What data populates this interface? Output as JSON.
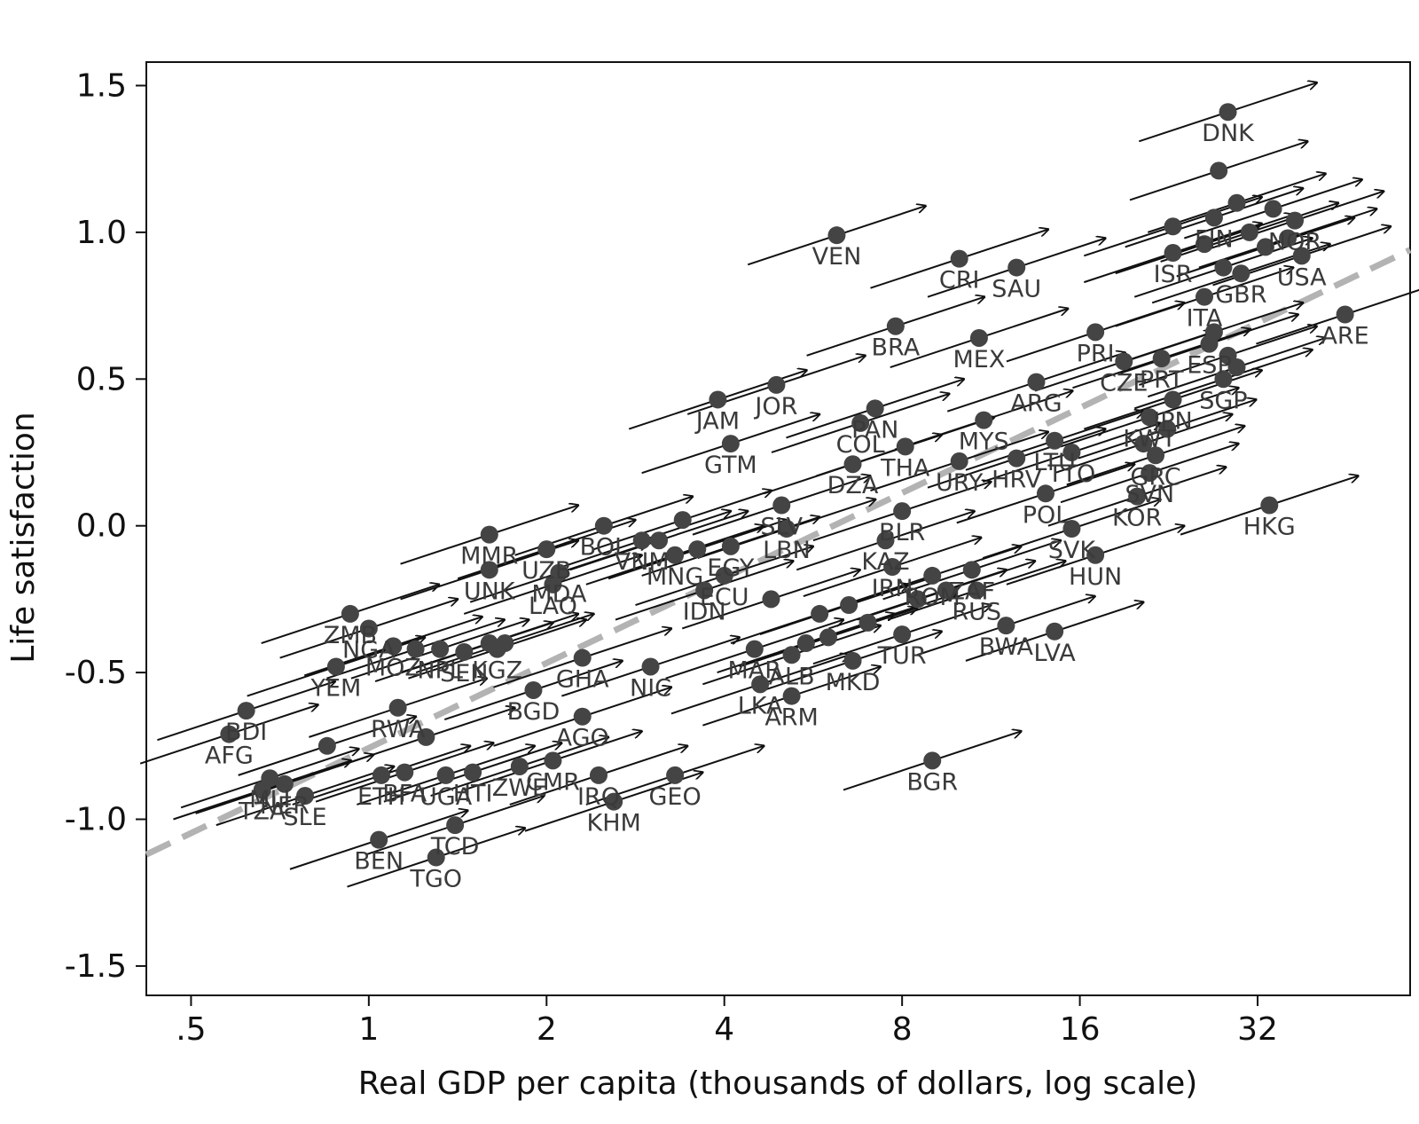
{
  "chart_data": {
    "type": "scatter",
    "title": "",
    "xlabel": "Real GDP per capita (thousands of dollars, log scale)",
    "ylabel": "Life satisfaction",
    "x_scale": "log2",
    "xlim": [
      0.42,
      58
    ],
    "ylim": [
      -1.6,
      1.58
    ],
    "x_ticks": [
      0.5,
      1,
      2,
      4,
      8,
      16,
      32
    ],
    "x_tick_labels": [
      ".5",
      "1",
      "2",
      "4",
      "8",
      "16",
      "32"
    ],
    "y_ticks": [
      1.5,
      1.0,
      0.5,
      0.0,
      -0.5,
      -1.0,
      -1.5
    ],
    "y_tick_labels": [
      "1.5",
      "1.0",
      "0.5",
      "0.0",
      "-0.5",
      "-1.0",
      "-1.5"
    ],
    "grid": false,
    "legend": "none",
    "colors": {
      "points": "#444444",
      "arrows": "#111111",
      "trend": "#b3b3b3",
      "labels": "#3a3a3a"
    },
    "trend_line": {
      "style": "dashed",
      "points": [
        [
          0.42,
          -1.12
        ],
        [
          58,
          0.94
        ]
      ]
    },
    "arrow_length": {
      "dlog2x": 1.0,
      "dy": 0.2
    },
    "countries": [
      {
        "code": "DNK",
        "gdp": 28.5,
        "ls": 1.41
      },
      {
        "code": "VEN",
        "gdp": 6.2,
        "ls": 0.99
      },
      {
        "code": "CRI",
        "gdp": 10.0,
        "ls": 0.91
      },
      {
        "code": "SAU",
        "gdp": 12.5,
        "ls": 0.88
      },
      {
        "code": "ARE",
        "gdp": 45.0,
        "ls": 0.72
      },
      {
        "code": "BRA",
        "gdp": 7.8,
        "ls": 0.68
      },
      {
        "code": "MEX",
        "gdp": 10.8,
        "ls": 0.64
      },
      {
        "code": "PRI",
        "gdp": 17.0,
        "ls": 0.66
      },
      {
        "code": "ITA",
        "gdp": 26.0,
        "ls": 0.78
      },
      {
        "code": "GBR",
        "gdp": 30.0,
        "ls": 0.86
      },
      {
        "code": "USA",
        "gdp": 38.0,
        "ls": 0.92
      },
      {
        "code": "ISR",
        "gdp": 23.0,
        "ls": 0.93
      },
      {
        "code": "FIN",
        "gdp": 27.0,
        "ls": 1.05
      },
      {
        "code": "NOR",
        "gdp": 37.0,
        "ls": 1.04
      },
      {
        "code": "JOR",
        "gdp": 4.9,
        "ls": 0.48
      },
      {
        "code": "JAM",
        "gdp": 3.9,
        "ls": 0.43
      },
      {
        "code": "CZE",
        "gdp": 19.0,
        "ls": 0.56
      },
      {
        "code": "ARG",
        "gdp": 13.5,
        "ls": 0.49
      },
      {
        "code": "PAN",
        "gdp": 7.2,
        "ls": 0.4
      },
      {
        "code": "GTM",
        "gdp": 4.1,
        "ls": 0.28
      },
      {
        "code": "COL",
        "gdp": 6.8,
        "ls": 0.35
      },
      {
        "code": "SLV",
        "gdp": 5.0,
        "ls": 0.07
      },
      {
        "code": "DZA",
        "gdp": 6.6,
        "ls": 0.21
      },
      {
        "code": "THA",
        "gdp": 8.1,
        "ls": 0.27
      },
      {
        "code": "MYS",
        "gdp": 11.0,
        "ls": 0.36
      },
      {
        "code": "URY",
        "gdp": 10.0,
        "ls": 0.22
      },
      {
        "code": "HRV",
        "gdp": 12.5,
        "ls": 0.23
      },
      {
        "code": "LTU",
        "gdp": 14.5,
        "ls": 0.29
      },
      {
        "code": "TTO",
        "gdp": 15.5,
        "ls": 0.25
      },
      {
        "code": "KWT",
        "gdp": 21.0,
        "ls": 0.37
      },
      {
        "code": "JPN",
        "gdp": 23.0,
        "ls": 0.43
      },
      {
        "code": "SGP",
        "gdp": 28.0,
        "ls": 0.5
      },
      {
        "code": "GRC",
        "gdp": 21.5,
        "ls": 0.24
      },
      {
        "code": "SVN",
        "gdp": 21.0,
        "ls": 0.18
      },
      {
        "code": "KOR",
        "gdp": 20.0,
        "ls": 0.1
      },
      {
        "code": "POL",
        "gdp": 14.0,
        "ls": 0.11
      },
      {
        "code": "HKG",
        "gdp": 33.5,
        "ls": 0.07
      },
      {
        "code": "LBN",
        "gdp": 5.1,
        "ls": -0.01
      },
      {
        "code": "BLR",
        "gdp": 8.0,
        "ls": 0.05
      },
      {
        "code": "KAZ",
        "gdp": 7.5,
        "ls": -0.05
      },
      {
        "code": "IRN",
        "gdp": 7.7,
        "ls": -0.14
      },
      {
        "code": "SVK",
        "gdp": 15.5,
        "ls": -0.01
      },
      {
        "code": "HUN",
        "gdp": 17.0,
        "ls": -0.1
      },
      {
        "code": "MMR",
        "gdp": 1.6,
        "ls": -0.03
      },
      {
        "code": "UNK",
        "gdp": 1.6,
        "ls": -0.15
      },
      {
        "code": "UZB",
        "gdp": 2.0,
        "ls": -0.08
      },
      {
        "code": "MDA",
        "gdp": 2.1,
        "ls": -0.16
      },
      {
        "code": "LAO",
        "gdp": 2.05,
        "ls": -0.2
      },
      {
        "code": "BOL",
        "gdp": 2.5,
        "ls": 0.0
      },
      {
        "code": "VNM",
        "gdp": 2.9,
        "ls": -0.05
      },
      {
        "code": "MNG",
        "gdp": 3.3,
        "ls": -0.1
      },
      {
        "code": "EGY",
        "gdp": 4.1,
        "ls": -0.07
      },
      {
        "code": "ECU",
        "gdp": 4.0,
        "ls": -0.17
      },
      {
        "code": "IDN",
        "gdp": 3.7,
        "ls": -0.22
      },
      {
        "code": "ROM",
        "gdp": 9.0,
        "ls": -0.17
      },
      {
        "code": "ZAF",
        "gdp": 10.5,
        "ls": -0.15
      },
      {
        "code": "RUS",
        "gdp": 10.7,
        "ls": -0.22
      },
      {
        "code": "BWA",
        "gdp": 12.0,
        "ls": -0.34
      },
      {
        "code": "LVA",
        "gdp": 14.5,
        "ls": -0.36
      },
      {
        "code": "TUR",
        "gdp": 8.0,
        "ls": -0.37
      },
      {
        "code": "MKD",
        "gdp": 6.6,
        "ls": -0.46
      },
      {
        "code": "ALB",
        "gdp": 5.2,
        "ls": -0.44
      },
      {
        "code": "MAR",
        "gdp": 4.5,
        "ls": -0.42
      },
      {
        "code": "LKA",
        "gdp": 4.6,
        "ls": -0.54
      },
      {
        "code": "ARM",
        "gdp": 5.2,
        "ls": -0.58
      },
      {
        "code": "NIC",
        "gdp": 3.0,
        "ls": -0.48
      },
      {
        "code": "GEO",
        "gdp": 3.3,
        "ls": -0.85
      },
      {
        "code": "IRQ",
        "gdp": 2.45,
        "ls": -0.85
      },
      {
        "code": "KHM",
        "gdp": 2.6,
        "ls": -0.94
      },
      {
        "code": "GHA",
        "gdp": 2.3,
        "ls": -0.45
      },
      {
        "code": "BGD",
        "gdp": 1.9,
        "ls": -0.56
      },
      {
        "code": "AGO",
        "gdp": 2.3,
        "ls": -0.65
      },
      {
        "code": "CMR",
        "gdp": 2.05,
        "ls": -0.8
      },
      {
        "code": "ZWE",
        "gdp": 1.8,
        "ls": -0.82
      },
      {
        "code": "KGZ",
        "gdp": 1.65,
        "ls": -0.42
      },
      {
        "code": "SEN",
        "gdp": 1.45,
        "ls": -0.43
      },
      {
        "code": "NPL",
        "gdp": 1.32,
        "ls": -0.42
      },
      {
        "code": "MOZ",
        "gdp": 1.1,
        "ls": -0.41
      },
      {
        "code": "ZMB",
        "gdp": 0.93,
        "ls": -0.3
      },
      {
        "code": "NGA",
        "gdp": 1.0,
        "ls": -0.35
      },
      {
        "code": "YEM",
        "gdp": 0.88,
        "ls": -0.48
      },
      {
        "code": "RWA",
        "gdp": 1.12,
        "ls": -0.62
      },
      {
        "code": "BDI",
        "gdp": 0.62,
        "ls": -0.63
      },
      {
        "code": "AFG",
        "gdp": 0.58,
        "ls": -0.71
      },
      {
        "code": "MLI",
        "gdp": 0.68,
        "ls": -0.86
      },
      {
        "code": "NER",
        "gdp": 0.72,
        "ls": -0.88
      },
      {
        "code": "TZA",
        "gdp": 0.66,
        "ls": -0.9
      },
      {
        "code": "SLE",
        "gdp": 0.78,
        "ls": -0.92
      },
      {
        "code": "ETH",
        "gdp": 1.05,
        "ls": -0.85
      },
      {
        "code": "BFA",
        "gdp": 1.15,
        "ls": -0.84
      },
      {
        "code": "UGA",
        "gdp": 1.35,
        "ls": -0.85
      },
      {
        "code": "HTI",
        "gdp": 1.5,
        "ls": -0.84
      },
      {
        "code": "BEN",
        "gdp": 1.04,
        "ls": -1.07
      },
      {
        "code": "TGO",
        "gdp": 1.3,
        "ls": -1.13
      },
      {
        "code": "TCD",
        "gdp": 1.4,
        "ls": -1.02
      },
      {
        "code": "BGR",
        "gdp": 9.0,
        "ls": -0.8
      },
      {
        "code": "PRT",
        "gdp": 22.0,
        "ls": 0.57
      },
      {
        "code": "ESP",
        "gdp": 26.5,
        "ls": 0.62
      }
    ],
    "extra_points": [
      {
        "gdp": 27.5,
        "ls": 1.21
      },
      {
        "gdp": 23.0,
        "ls": 1.02
      },
      {
        "gdp": 29.5,
        "ls": 1.1
      },
      {
        "gdp": 31.0,
        "ls": 1.0
      },
      {
        "gdp": 34.0,
        "ls": 1.08
      },
      {
        "gdp": 26.0,
        "ls": 0.96
      },
      {
        "gdp": 33.0,
        "ls": 0.95
      },
      {
        "gdp": 36.0,
        "ls": 0.98
      },
      {
        "gdp": 28.0,
        "ls": 0.88
      },
      {
        "gdp": 27.0,
        "ls": 0.66
      },
      {
        "gdp": 28.5,
        "ls": 0.58
      },
      {
        "gdp": 29.5,
        "ls": 0.54
      },
      {
        "gdp": 22.5,
        "ls": 0.33
      },
      {
        "gdp": 20.5,
        "ls": 0.28
      },
      {
        "gdp": 3.4,
        "ls": 0.02
      },
      {
        "gdp": 3.1,
        "ls": -0.05
      },
      {
        "gdp": 3.6,
        "ls": -0.08
      },
      {
        "gdp": 4.8,
        "ls": -0.25
      },
      {
        "gdp": 5.8,
        "ls": -0.3
      },
      {
        "gdp": 6.5,
        "ls": -0.27
      },
      {
        "gdp": 6.0,
        "ls": -0.38
      },
      {
        "gdp": 5.5,
        "ls": -0.4
      },
      {
        "gdp": 7.0,
        "ls": -0.33
      },
      {
        "gdp": 8.5,
        "ls": -0.25
      },
      {
        "gdp": 9.5,
        "ls": -0.22
      },
      {
        "gdp": 1.2,
        "ls": -0.42
      },
      {
        "gdp": 1.6,
        "ls": -0.4
      },
      {
        "gdp": 1.25,
        "ls": -0.72
      },
      {
        "gdp": 0.85,
        "ls": -0.75
      },
      {
        "gdp": 1.7,
        "ls": -0.4
      }
    ]
  }
}
